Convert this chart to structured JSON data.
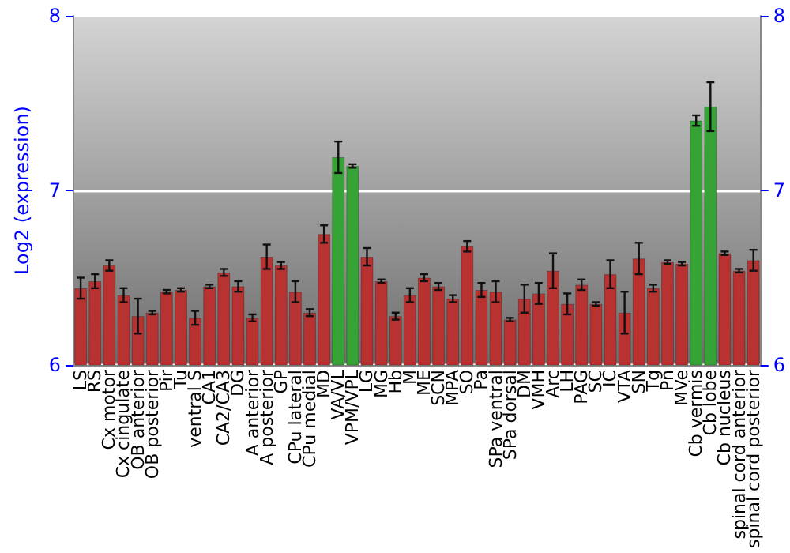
{
  "chart_data": {
    "type": "bar",
    "ylabel": "Log2 (expression)",
    "categories": [
      "LS",
      "RS",
      "Cx motor",
      "Cx cingulate",
      "OB anterior",
      "OB posterior",
      "Pir",
      "Tu",
      "ventral S",
      "CA1",
      "CA2/CA3",
      "DG",
      "A anterior",
      "A posterior",
      "GP",
      "CPu lateral",
      "CPu medial",
      "MD",
      "VA/VL",
      "VPM/VPL",
      "LG",
      "MG",
      "Hb",
      "M",
      "ME",
      "SCN",
      "MPA",
      "SO",
      "Pa",
      "SPa ventral",
      "SPa dorsal",
      "DM",
      "VMH",
      "Arc",
      "LH",
      "PAG",
      "SC",
      "IC",
      "VTA",
      "SN",
      "Tg",
      "Pn",
      "MVe",
      "Cb vermis",
      "Cb lobe",
      "Cb nucleus",
      "spinal cord anterior",
      "spinal cord posterior"
    ],
    "values": [
      6.44,
      6.48,
      6.57,
      6.4,
      6.28,
      6.3,
      6.42,
      6.43,
      6.27,
      6.45,
      6.53,
      6.45,
      6.27,
      6.62,
      6.57,
      6.42,
      6.3,
      6.75,
      7.19,
      7.14,
      6.62,
      6.48,
      6.28,
      6.4,
      6.5,
      6.45,
      6.38,
      6.68,
      6.43,
      6.42,
      6.26,
      6.38,
      6.41,
      6.54,
      6.35,
      6.46,
      6.35,
      6.52,
      6.3,
      6.61,
      6.44,
      6.59,
      6.58,
      7.4,
      7.48,
      6.64,
      6.54,
      6.6
    ],
    "errors": [
      0.06,
      0.04,
      0.03,
      0.04,
      0.1,
      0.01,
      0.01,
      0.01,
      0.04,
      0.01,
      0.02,
      0.03,
      0.02,
      0.07,
      0.02,
      0.06,
      0.02,
      0.05,
      0.09,
      0.01,
      0.05,
      0.01,
      0.02,
      0.04,
      0.02,
      0.02,
      0.02,
      0.03,
      0.04,
      0.06,
      0.01,
      0.08,
      0.06,
      0.1,
      0.06,
      0.03,
      0.01,
      0.08,
      0.12,
      0.09,
      0.02,
      0.01,
      0.01,
      0.03,
      0.14,
      0.01,
      0.01,
      0.06
    ],
    "colors": [
      "#b83232",
      "#b83232",
      "#b83232",
      "#b83232",
      "#b83232",
      "#b83232",
      "#b83232",
      "#b83232",
      "#b83232",
      "#b83232",
      "#b83232",
      "#b83232",
      "#b83232",
      "#b83232",
      "#b83232",
      "#b83232",
      "#b83232",
      "#b83232",
      "#36a336",
      "#36a336",
      "#b83232",
      "#b83232",
      "#b83232",
      "#b83232",
      "#b83232",
      "#b83232",
      "#b83232",
      "#b83232",
      "#b83232",
      "#b83232",
      "#b83232",
      "#b83232",
      "#b83232",
      "#b83232",
      "#b83232",
      "#b83232",
      "#b83232",
      "#b83232",
      "#b83232",
      "#b83232",
      "#b83232",
      "#b83232",
      "#b83232",
      "#36a336",
      "#36a336",
      "#b83232",
      "#b83232",
      "#b83232"
    ],
    "ylim": [
      6,
      8
    ],
    "yticks": [
      6,
      7,
      8
    ],
    "y2lim": [
      6,
      8
    ],
    "y2ticks": [
      6,
      7,
      8
    ],
    "grid": "y"
  }
}
